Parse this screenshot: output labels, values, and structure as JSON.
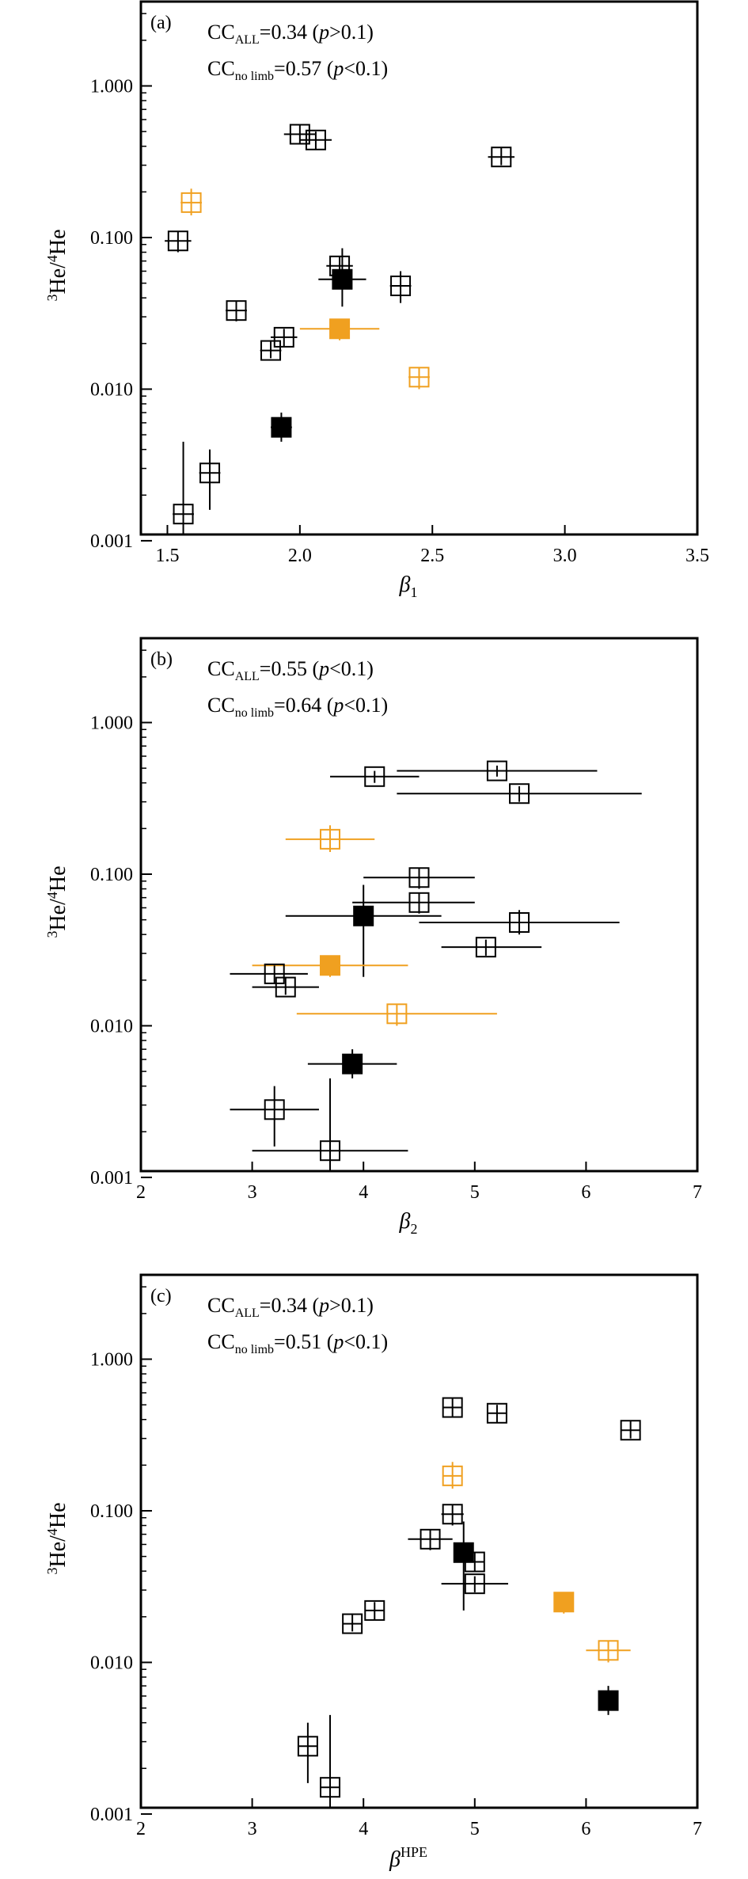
{
  "colors": {
    "black": "#000000",
    "orange": "#f0a020"
  },
  "chart_data": [
    {
      "type": "scatter",
      "panel_label": "(a)",
      "cc_all": {
        "value": "=0.34 (",
        "p_rel": ">0.1)"
      },
      "cc_nolimb": {
        "value": "=0.57 (",
        "p_rel": "<0.1)"
      },
      "xlabel": {
        "sym": "β",
        "sub": "1",
        "sup": ""
      },
      "ylabel": "3He/4He",
      "xlim": [
        1.4,
        3.5
      ],
      "xticks": [
        1.5,
        2.0,
        2.5,
        3.0,
        3.5
      ],
      "xtick_labels": [
        "1.5",
        "2.0",
        "2.5",
        "3.0",
        "3.5"
      ],
      "yscale": "log",
      "ylim": [
        0.0011,
        3.6
      ],
      "yticks": [
        0.001,
        0.01,
        0.1,
        1.0
      ],
      "ytick_labels": [
        "0.001",
        "0.010",
        "0.100",
        "1.000"
      ],
      "points": [
        {
          "x": 2.0,
          "y": 0.48,
          "xlo": 1.94,
          "xhi": 2.06,
          "ylo": 0.42,
          "yhi": 0.55,
          "color": "black",
          "marker": "open"
        },
        {
          "x": 2.06,
          "y": 0.44,
          "xlo": 2.0,
          "xhi": 2.12,
          "ylo": 0.38,
          "yhi": 0.5,
          "color": "black",
          "marker": "open"
        },
        {
          "x": 2.76,
          "y": 0.34,
          "xlo": 2.71,
          "xhi": 2.81,
          "ylo": 0.3,
          "yhi": 0.39,
          "color": "black",
          "marker": "open"
        },
        {
          "x": 1.59,
          "y": 0.17,
          "xlo": 1.55,
          "xhi": 1.63,
          "ylo": 0.14,
          "yhi": 0.21,
          "color": "orange",
          "marker": "open"
        },
        {
          "x": 1.54,
          "y": 0.095,
          "xlo": 1.49,
          "xhi": 1.59,
          "ylo": 0.08,
          "yhi": 0.11,
          "color": "black",
          "marker": "open"
        },
        {
          "x": 2.15,
          "y": 0.065,
          "xlo": 2.1,
          "xhi": 2.2,
          "ylo": 0.055,
          "yhi": 0.075,
          "color": "black",
          "marker": "open"
        },
        {
          "x": 2.16,
          "y": 0.053,
          "xlo": 2.07,
          "xhi": 2.25,
          "ylo": 0.035,
          "yhi": 0.085,
          "color": "black",
          "marker": "filled"
        },
        {
          "x": 2.38,
          "y": 0.048,
          "xlo": 2.34,
          "xhi": 2.42,
          "ylo": 0.037,
          "yhi": 0.06,
          "color": "black",
          "marker": "open"
        },
        {
          "x": 1.76,
          "y": 0.033,
          "xlo": 1.72,
          "xhi": 1.8,
          "ylo": 0.028,
          "yhi": 0.038,
          "color": "black",
          "marker": "open"
        },
        {
          "x": 2.15,
          "y": 0.025,
          "xlo": 2.0,
          "xhi": 2.3,
          "ylo": 0.021,
          "yhi": 0.029,
          "color": "orange",
          "marker": "filled"
        },
        {
          "x": 1.94,
          "y": 0.022,
          "xlo": 1.89,
          "xhi": 1.99,
          "ylo": 0.019,
          "yhi": 0.025,
          "color": "black",
          "marker": "open"
        },
        {
          "x": 1.89,
          "y": 0.018,
          "xlo": 1.85,
          "xhi": 1.93,
          "ylo": 0.016,
          "yhi": 0.021,
          "color": "black",
          "marker": "open"
        },
        {
          "x": 2.45,
          "y": 0.012,
          "xlo": 2.41,
          "xhi": 2.49,
          "ylo": 0.01,
          "yhi": 0.014,
          "color": "orange",
          "marker": "open"
        },
        {
          "x": 1.93,
          "y": 0.0056,
          "xlo": 1.89,
          "xhi": 1.97,
          "ylo": 0.0045,
          "yhi": 0.007,
          "color": "black",
          "marker": "filled"
        },
        {
          "x": 1.66,
          "y": 0.0028,
          "xlo": 1.62,
          "xhi": 1.7,
          "ylo": 0.0016,
          "yhi": 0.004,
          "color": "black",
          "marker": "open"
        },
        {
          "x": 1.56,
          "y": 0.0015,
          "xlo": 1.52,
          "xhi": 1.6,
          "ylo": 0.0011,
          "yhi": 0.0045,
          "color": "black",
          "marker": "open"
        }
      ]
    },
    {
      "type": "scatter",
      "panel_label": "(b)",
      "cc_all": {
        "value": "=0.55 (",
        "p_rel": "<0.1)"
      },
      "cc_nolimb": {
        "value": "=0.64 (",
        "p_rel": "<0.1)"
      },
      "xlabel": {
        "sym": "β",
        "sub": "2",
        "sup": ""
      },
      "ylabel": "3He/4He",
      "xlim": [
        2,
        7
      ],
      "xticks": [
        2,
        3,
        4,
        5,
        6,
        7
      ],
      "xtick_labels": [
        "2",
        "3",
        "4",
        "5",
        "6",
        "7"
      ],
      "yscale": "log",
      "ylim": [
        0.0011,
        3.6
      ],
      "yticks": [
        0.001,
        0.01,
        0.1,
        1.0
      ],
      "ytick_labels": [
        "0.001",
        "0.010",
        "0.100",
        "1.000"
      ],
      "points": [
        {
          "x": 5.2,
          "y": 0.48,
          "xlo": 4.3,
          "xhi": 6.1,
          "ylo": 0.44,
          "yhi": 0.52,
          "color": "black",
          "marker": "open"
        },
        {
          "x": 4.1,
          "y": 0.44,
          "xlo": 3.7,
          "xhi": 4.5,
          "ylo": 0.4,
          "yhi": 0.48,
          "color": "black",
          "marker": "open"
        },
        {
          "x": 5.4,
          "y": 0.34,
          "xlo": 4.3,
          "xhi": 6.5,
          "ylo": 0.3,
          "yhi": 0.38,
          "color": "black",
          "marker": "open"
        },
        {
          "x": 3.7,
          "y": 0.17,
          "xlo": 3.3,
          "xhi": 4.1,
          "ylo": 0.14,
          "yhi": 0.21,
          "color": "orange",
          "marker": "open"
        },
        {
          "x": 4.5,
          "y": 0.095,
          "xlo": 4.0,
          "xhi": 5.0,
          "ylo": 0.08,
          "yhi": 0.11,
          "color": "black",
          "marker": "open"
        },
        {
          "x": 4.5,
          "y": 0.065,
          "xlo": 3.9,
          "xhi": 5.0,
          "ylo": 0.055,
          "yhi": 0.075,
          "color": "black",
          "marker": "open"
        },
        {
          "x": 4.0,
          "y": 0.053,
          "xlo": 3.3,
          "xhi": 4.7,
          "ylo": 0.021,
          "yhi": 0.085,
          "color": "black",
          "marker": "filled"
        },
        {
          "x": 5.4,
          "y": 0.048,
          "xlo": 4.5,
          "xhi": 6.3,
          "ylo": 0.04,
          "yhi": 0.058,
          "color": "black",
          "marker": "open"
        },
        {
          "x": 5.1,
          "y": 0.033,
          "xlo": 4.7,
          "xhi": 5.6,
          "ylo": 0.029,
          "yhi": 0.037,
          "color": "black",
          "marker": "open"
        },
        {
          "x": 3.7,
          "y": 0.025,
          "xlo": 3.0,
          "xhi": 4.4,
          "ylo": 0.021,
          "yhi": 0.029,
          "color": "orange",
          "marker": "filled"
        },
        {
          "x": 3.2,
          "y": 0.022,
          "xlo": 2.8,
          "xhi": 3.5,
          "ylo": 0.019,
          "yhi": 0.025,
          "color": "black",
          "marker": "open"
        },
        {
          "x": 3.3,
          "y": 0.018,
          "xlo": 3.0,
          "xhi": 3.6,
          "ylo": 0.016,
          "yhi": 0.021,
          "color": "black",
          "marker": "open"
        },
        {
          "x": 4.3,
          "y": 0.012,
          "xlo": 3.4,
          "xhi": 5.2,
          "ylo": 0.01,
          "yhi": 0.014,
          "color": "orange",
          "marker": "open"
        },
        {
          "x": 3.9,
          "y": 0.0056,
          "xlo": 3.5,
          "xhi": 4.3,
          "ylo": 0.0045,
          "yhi": 0.007,
          "color": "black",
          "marker": "filled"
        },
        {
          "x": 3.2,
          "y": 0.0028,
          "xlo": 2.8,
          "xhi": 3.6,
          "ylo": 0.0016,
          "yhi": 0.004,
          "color": "black",
          "marker": "open"
        },
        {
          "x": 3.7,
          "y": 0.0015,
          "xlo": 3.0,
          "xhi": 4.4,
          "ylo": 0.0011,
          "yhi": 0.0045,
          "color": "black",
          "marker": "open"
        }
      ]
    },
    {
      "type": "scatter",
      "panel_label": "(c)",
      "cc_all": {
        "value": "=0.34 (",
        "p_rel": ">0.1)"
      },
      "cc_nolimb": {
        "value": "=0.51 (",
        "p_rel": "<0.1)"
      },
      "xlabel": {
        "sym": "β",
        "sub": "",
        "sup": "HPE"
      },
      "ylabel": "3He/4He",
      "xlim": [
        2,
        7
      ],
      "xticks": [
        2,
        3,
        4,
        5,
        6,
        7
      ],
      "xtick_labels": [
        "2",
        "3",
        "4",
        "5",
        "6",
        "7"
      ],
      "yscale": "log",
      "ylim": [
        0.0011,
        3.6
      ],
      "yticks": [
        0.001,
        0.01,
        0.1,
        1.0
      ],
      "ytick_labels": [
        "0.001",
        "0.010",
        "0.100",
        "1.000"
      ],
      "points": [
        {
          "x": 4.8,
          "y": 0.48,
          "xlo": 4.72,
          "xhi": 4.88,
          "ylo": 0.42,
          "yhi": 0.55,
          "color": "black",
          "marker": "open"
        },
        {
          "x": 5.2,
          "y": 0.44,
          "xlo": 5.12,
          "xhi": 5.28,
          "ylo": 0.38,
          "yhi": 0.5,
          "color": "black",
          "marker": "open"
        },
        {
          "x": 6.4,
          "y": 0.34,
          "xlo": 6.32,
          "xhi": 6.48,
          "ylo": 0.3,
          "yhi": 0.39,
          "color": "black",
          "marker": "open"
        },
        {
          "x": 4.8,
          "y": 0.17,
          "xlo": 4.72,
          "xhi": 4.88,
          "ylo": 0.14,
          "yhi": 0.21,
          "color": "orange",
          "marker": "open"
        },
        {
          "x": 4.8,
          "y": 0.095,
          "xlo": 4.7,
          "xhi": 4.9,
          "ylo": 0.08,
          "yhi": 0.11,
          "color": "black",
          "marker": "open"
        },
        {
          "x": 4.6,
          "y": 0.065,
          "xlo": 4.4,
          "xhi": 4.8,
          "ylo": 0.055,
          "yhi": 0.075,
          "color": "black",
          "marker": "open"
        },
        {
          "x": 4.9,
          "y": 0.053,
          "xlo": 4.82,
          "xhi": 4.98,
          "ylo": 0.022,
          "yhi": 0.085,
          "color": "black",
          "marker": "filled"
        },
        {
          "x": 5.0,
          "y": 0.046,
          "xlo": 4.92,
          "xhi": 5.08,
          "ylo": 0.04,
          "yhi": 0.053,
          "color": "black",
          "marker": "open"
        },
        {
          "x": 5.0,
          "y": 0.033,
          "xlo": 4.7,
          "xhi": 5.3,
          "ylo": 0.029,
          "yhi": 0.037,
          "color": "black",
          "marker": "open"
        },
        {
          "x": 5.8,
          "y": 0.025,
          "xlo": 5.72,
          "xhi": 5.88,
          "ylo": 0.021,
          "yhi": 0.029,
          "color": "orange",
          "marker": "filled"
        },
        {
          "x": 4.1,
          "y": 0.022,
          "xlo": 4.02,
          "xhi": 4.18,
          "ylo": 0.019,
          "yhi": 0.025,
          "color": "black",
          "marker": "open"
        },
        {
          "x": 3.9,
          "y": 0.018,
          "xlo": 3.82,
          "xhi": 3.98,
          "ylo": 0.016,
          "yhi": 0.021,
          "color": "black",
          "marker": "open"
        },
        {
          "x": 6.2,
          "y": 0.012,
          "xlo": 6.0,
          "xhi": 6.4,
          "ylo": 0.01,
          "yhi": 0.014,
          "color": "orange",
          "marker": "open"
        },
        {
          "x": 6.2,
          "y": 0.0056,
          "xlo": 6.12,
          "xhi": 6.28,
          "ylo": 0.0045,
          "yhi": 0.007,
          "color": "black",
          "marker": "filled"
        },
        {
          "x": 3.5,
          "y": 0.0028,
          "xlo": 3.42,
          "xhi": 3.58,
          "ylo": 0.0016,
          "yhi": 0.004,
          "color": "black",
          "marker": "open"
        },
        {
          "x": 3.7,
          "y": 0.0015,
          "xlo": 3.62,
          "xhi": 3.78,
          "ylo": 0.0011,
          "yhi": 0.0045,
          "color": "black",
          "marker": "open"
        }
      ]
    }
  ]
}
